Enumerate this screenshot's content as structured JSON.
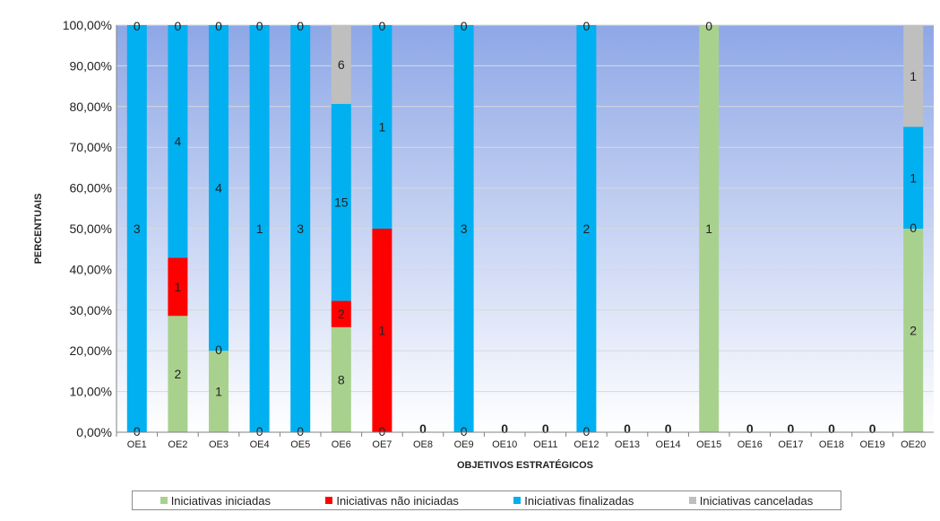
{
  "chart_data": {
    "type": "bar",
    "stacked": "percent",
    "title": "",
    "xlabel": "OBJETIVOS ESTRATÉGICOS",
    "ylabel": "PERCENTUAIS",
    "ylim": [
      0,
      100
    ],
    "y_ticks": [
      "0,00%",
      "10,00%",
      "20,00%",
      "30,00%",
      "40,00%",
      "50,00%",
      "60,00%",
      "70,00%",
      "80,00%",
      "90,00%",
      "100,00%"
    ],
    "grid": true,
    "legend_position": "bottom",
    "categories": [
      "OE1",
      "OE2",
      "OE3",
      "OE4",
      "OE5",
      "OE6",
      "OE7",
      "OE8",
      "OE9",
      "OE10",
      "OE11",
      "OE12",
      "OE13",
      "OE14",
      "OE15",
      "OE16",
      "OE17",
      "OE18",
      "OE19",
      "OE20"
    ],
    "series": [
      {
        "name": "Iniciativas iniciadas",
        "color": "#a9d18e",
        "values": [
          0,
          2,
          1,
          0,
          0,
          8,
          0,
          0,
          0,
          0,
          0,
          0,
          0,
          0,
          1,
          0,
          0,
          0,
          0,
          2
        ]
      },
      {
        "name": "Iniciativas não iniciadas",
        "color": "#ff0000",
        "values": [
          0,
          1,
          0,
          0,
          0,
          2,
          1,
          0,
          0,
          0,
          0,
          0,
          0,
          0,
          0,
          0,
          0,
          0,
          0,
          0
        ]
      },
      {
        "name": "Iniciativas finalizadas",
        "color": "#00b0f0",
        "values": [
          3,
          4,
          4,
          1,
          3,
          15,
          1,
          0,
          3,
          0,
          0,
          2,
          0,
          0,
          0,
          0,
          0,
          0,
          0,
          1
        ]
      },
      {
        "name": "Iniciativas canceladas",
        "color": "#bfbfbf",
        "values": [
          0,
          0,
          0,
          0,
          0,
          6,
          0,
          0,
          0,
          0,
          0,
          0,
          0,
          0,
          0,
          0,
          0,
          0,
          0,
          1
        ]
      }
    ],
    "shown_labels": [
      {
        "category": 0,
        "series": 0,
        "text": "0"
      },
      {
        "category": 0,
        "series": 2,
        "text": "3"
      },
      {
        "category": 0,
        "series": 3,
        "text": "0"
      },
      {
        "category": 1,
        "series": 0,
        "text": "2"
      },
      {
        "category": 1,
        "series": 1,
        "text": "1"
      },
      {
        "category": 1,
        "series": 2,
        "text": "4"
      },
      {
        "category": 1,
        "series": 3,
        "text": "0"
      },
      {
        "category": 2,
        "series": 0,
        "text": "1"
      },
      {
        "category": 2,
        "series": 1,
        "text": "0"
      },
      {
        "category": 2,
        "series": 2,
        "text": "4"
      },
      {
        "category": 2,
        "series": 3,
        "text": "0"
      },
      {
        "category": 3,
        "series": 0,
        "text": "0"
      },
      {
        "category": 3,
        "series": 2,
        "text": "1"
      },
      {
        "category": 3,
        "series": 3,
        "text": "0"
      },
      {
        "category": 4,
        "series": 0,
        "text": "0"
      },
      {
        "category": 4,
        "series": 2,
        "text": "3"
      },
      {
        "category": 4,
        "series": 3,
        "text": "0"
      },
      {
        "category": 5,
        "series": 0,
        "text": "8"
      },
      {
        "category": 5,
        "series": 1,
        "text": "2"
      },
      {
        "category": 5,
        "series": 2,
        "text": "15"
      },
      {
        "category": 5,
        "series": 3,
        "text": "6"
      },
      {
        "category": 6,
        "series": 0,
        "text": "0"
      },
      {
        "category": 6,
        "series": 1,
        "text": "1"
      },
      {
        "category": 6,
        "series": 2,
        "text": "1"
      },
      {
        "category": 6,
        "series": 3,
        "text": "0"
      },
      {
        "category": 7,
        "series": 0,
        "text": "0"
      },
      {
        "category": 8,
        "series": 0,
        "text": "0"
      },
      {
        "category": 8,
        "series": 2,
        "text": "3"
      },
      {
        "category": 8,
        "series": 3,
        "text": "0"
      },
      {
        "category": 9,
        "series": 0,
        "text": "0"
      },
      {
        "category": 10,
        "series": 0,
        "text": "0"
      },
      {
        "category": 11,
        "series": 0,
        "text": "0"
      },
      {
        "category": 11,
        "series": 2,
        "text": "2"
      },
      {
        "category": 11,
        "series": 3,
        "text": "0"
      },
      {
        "category": 12,
        "series": 0,
        "text": "0"
      },
      {
        "category": 13,
        "series": 0,
        "text": "0"
      },
      {
        "category": 14,
        "series": 0,
        "text": "1"
      },
      {
        "category": 14,
        "series": 3,
        "text": "0"
      },
      {
        "category": 15,
        "series": 0,
        "text": "0"
      },
      {
        "category": 16,
        "series": 0,
        "text": "0"
      },
      {
        "category": 17,
        "series": 0,
        "text": "0"
      },
      {
        "category": 18,
        "series": 0,
        "text": "0"
      },
      {
        "category": 19,
        "series": 0,
        "text": "2"
      },
      {
        "category": 19,
        "series": 1,
        "text": "0"
      },
      {
        "category": 19,
        "series": 2,
        "text": "1"
      },
      {
        "category": 19,
        "series": 3,
        "text": "1"
      }
    ]
  }
}
